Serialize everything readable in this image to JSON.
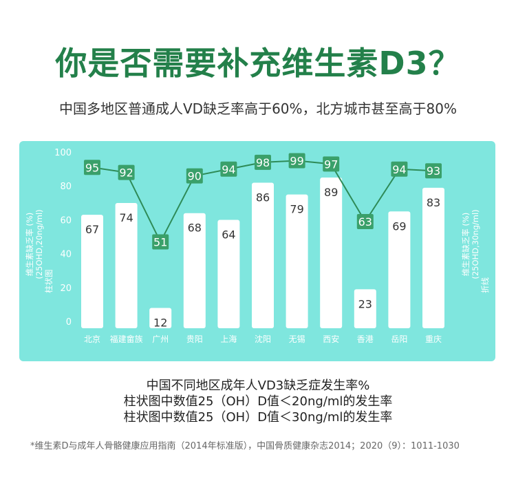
{
  "title": "你是否需要补充维生素D3？",
  "subtitle": "中国多地区普通成人VD缺乏率高于60%，北方城市甚至高于80%",
  "captions": {
    "line1": "中国不同地区成年人VD3缺乏症发生率%",
    "line2": "柱状图中数值25（OH）D值＜20ng/ml的发生率",
    "line3": "柱状图中数值25（OH）D值＜30ng/ml的发生率"
  },
  "footnote": "*维生素D与成年人骨骼健康应用指南（2014年标准版），中国骨质健康杂志2014；2020（9）：1011-1030",
  "chart_data": {
    "type": "bar",
    "categories": [
      "北京",
      "福建畲族",
      "广州",
      "贵阳",
      "上海",
      "沈阳",
      "无锡",
      "西安",
      "香港",
      "岳阳",
      "重庆"
    ],
    "series": [
      {
        "values": [
          67,
          74,
          12,
          68,
          64,
          86,
          79,
          89,
          23,
          69,
          83
        ]
      },
      {
        "values": [
          95,
          92,
          51,
          90,
          94,
          98,
          99,
          97,
          63,
          94,
          93
        ]
      }
    ],
    "yticks": [
      0,
      20,
      40,
      60,
      80,
      100
    ],
    "ylim": [
      0,
      100
    ],
    "left_axis_label": {
      "line1": "维生素缺乏率 (%)",
      "line2": "(25OHD,20ng/ml)",
      "line3": "柱状图"
    },
    "right_axis_label": {
      "line1": "维生素缺乏率 (%)",
      "line2": "(25OHD,30ng/ml)",
      "line3": "折线"
    },
    "grid": false,
    "colors": {
      "panel": "#7fe6de",
      "bar": "#ffffff",
      "line": "#2e8b57",
      "marker": "#3aa06a",
      "marker_text": "#ffffff",
      "axis_text": "#ffffff",
      "bar_text": "#333333"
    }
  }
}
